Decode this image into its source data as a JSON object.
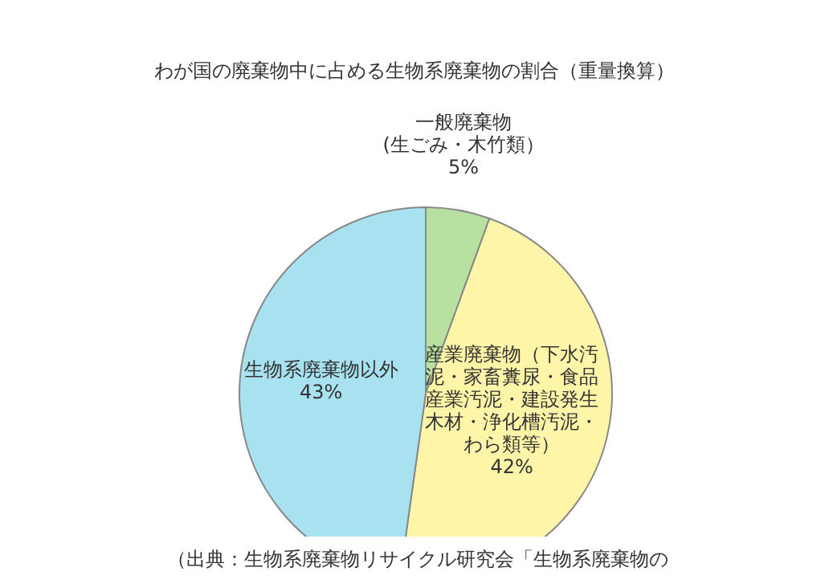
{
  "chart_data": {
    "type": "pie",
    "title": "わが国の廃棄物中に占める生物系廃棄物の割合（重量換算）",
    "categories": [
      "一般廃棄物(生ごみ・木竹類）",
      "産業廃棄物（下水汚泥・家畜糞尿・食品産業汚泥・建設発生木材・浄化槽汚泥・わら類等）",
      "生物系廃棄物以外"
    ],
    "values": [
      5,
      42,
      43
    ],
    "colors": [
      "#b8e0a0",
      "#fff5a8",
      "#a8e2f0"
    ],
    "value_labels": [
      "5%",
      "42%",
      "43%"
    ],
    "legend": false,
    "annotations": [
      "（出典：生物系廃棄物リサイクル研究会「生物系廃棄物の"
    ]
  }
}
